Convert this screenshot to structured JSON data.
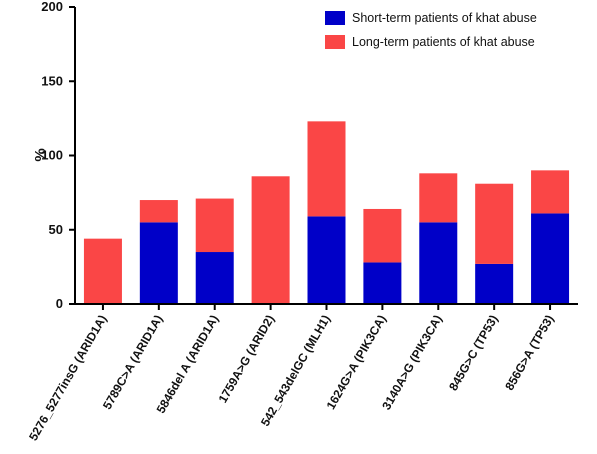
{
  "chart_data": {
    "type": "stacked_bar",
    "y_label": "%",
    "categories": [
      "5276_5277insG (ARID1A)",
      "5789C>A (ARID1A)",
      "5846del A (ARID1A)",
      "1759A>G (ARID2)",
      "542_543delGC (MLH1)",
      "1624G>A (PIK3CA)",
      "3140A>G (PIK3CA)",
      "845G>C (TP53)",
      "856G>A (TP53)"
    ],
    "series": [
      {
        "name": "Short-term patients of khat abuse",
        "color": "#0000c8",
        "values": [
          0,
          55,
          35,
          0,
          59,
          28,
          55,
          27,
          61
        ]
      },
      {
        "name": "Long-term patients of khat abuse",
        "color": "#fa4646",
        "values": [
          44,
          15,
          36,
          86,
          64,
          36,
          33,
          54,
          29
        ]
      }
    ],
    "ylim": [
      0,
      200
    ],
    "yticks": [
      0,
      50,
      100,
      150,
      200
    ],
    "legend": "top-right"
  }
}
